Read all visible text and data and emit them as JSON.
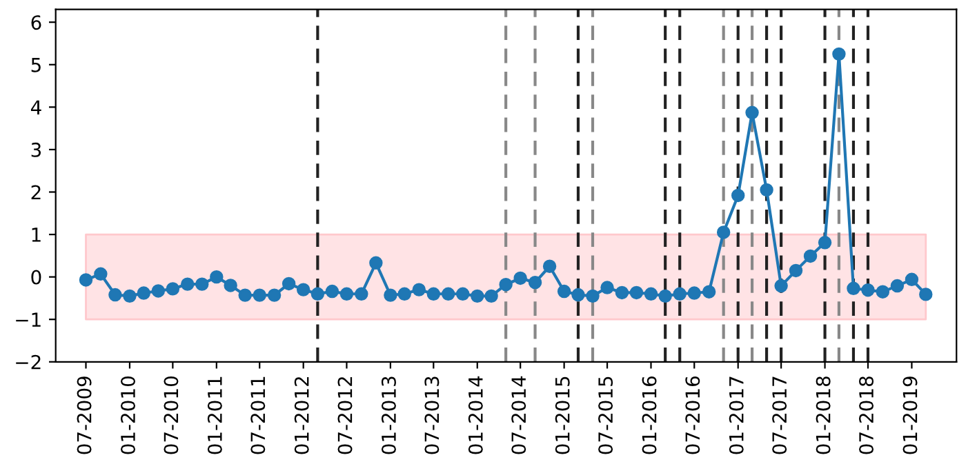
{
  "chart_data": {
    "type": "line",
    "marker": "circle",
    "line_style": "solid",
    "grid": false,
    "legend": false,
    "x": [
      "2009-07",
      "2009-09",
      "2009-11",
      "2010-01",
      "2010-03",
      "2010-05",
      "2010-07",
      "2010-09",
      "2010-11",
      "2011-01",
      "2011-03",
      "2011-05",
      "2011-07",
      "2011-09",
      "2011-11",
      "2012-01",
      "2012-03",
      "2012-05",
      "2012-07",
      "2012-09",
      "2012-11",
      "2013-01",
      "2013-03",
      "2013-05",
      "2013-07",
      "2013-09",
      "2013-11",
      "2014-01",
      "2014-03",
      "2014-05",
      "2014-07",
      "2014-09",
      "2014-11",
      "2015-01",
      "2015-03",
      "2015-05",
      "2015-07",
      "2015-09",
      "2015-11",
      "2016-01",
      "2016-03",
      "2016-05",
      "2016-07",
      "2016-09",
      "2016-11",
      "2017-01",
      "2017-03",
      "2017-05",
      "2017-07",
      "2017-09",
      "2017-11",
      "2018-01",
      "2018-03",
      "2018-05",
      "2018-07",
      "2018-09",
      "2018-11",
      "2019-01",
      "2019-03"
    ],
    "series": [
      {
        "color": "#1f77b4",
        "values": [
          -0.07,
          0.07,
          -0.42,
          -0.45,
          -0.38,
          -0.33,
          -0.28,
          -0.17,
          -0.17,
          0.0,
          -0.2,
          -0.43,
          -0.43,
          -0.43,
          -0.16,
          -0.3,
          -0.4,
          -0.34,
          -0.4,
          -0.4,
          0.33,
          -0.43,
          -0.4,
          -0.3,
          -0.4,
          -0.4,
          -0.4,
          -0.45,
          -0.45,
          -0.18,
          -0.03,
          -0.13,
          0.25,
          -0.34,
          -0.42,
          -0.45,
          -0.25,
          -0.37,
          -0.37,
          -0.4,
          -0.45,
          -0.4,
          -0.38,
          -0.35,
          1.05,
          1.92,
          3.87,
          2.05,
          -0.21,
          0.15,
          0.49,
          0.81,
          5.25,
          -0.27,
          -0.31,
          -0.35,
          -0.21,
          -0.06,
          -0.41
        ]
      }
    ],
    "xlim": [
      "2009-02-24",
      "2019-07-08"
    ],
    "ylim": [
      -2,
      6.3
    ],
    "yticks": [
      -2,
      -1,
      0,
      1,
      2,
      3,
      4,
      5,
      6
    ],
    "xticks": [
      {
        "value": "2009-07",
        "label": "07-2009"
      },
      {
        "value": "2010-01",
        "label": "01-2010"
      },
      {
        "value": "2010-07",
        "label": "07-2010"
      },
      {
        "value": "2011-01",
        "label": "01-2011"
      },
      {
        "value": "2011-07",
        "label": "07-2011"
      },
      {
        "value": "2012-01",
        "label": "01-2012"
      },
      {
        "value": "2012-07",
        "label": "07-2012"
      },
      {
        "value": "2013-01",
        "label": "01-2013"
      },
      {
        "value": "2013-07",
        "label": "07-2013"
      },
      {
        "value": "2014-01",
        "label": "01-2014"
      },
      {
        "value": "2014-07",
        "label": "07-2014"
      },
      {
        "value": "2015-01",
        "label": "01-2015"
      },
      {
        "value": "2015-07",
        "label": "07-2015"
      },
      {
        "value": "2016-01",
        "label": "01-2016"
      },
      {
        "value": "2016-07",
        "label": "07-2016"
      },
      {
        "value": "2017-01",
        "label": "01-2017"
      },
      {
        "value": "2017-07",
        "label": "07-2017"
      },
      {
        "value": "2018-01",
        "label": "01-2018"
      },
      {
        "value": "2018-07",
        "label": "07-2018"
      },
      {
        "value": "2019-01",
        "label": "01-2019"
      }
    ],
    "bands": [
      {
        "axis": "y",
        "from": -1,
        "to": 1,
        "color": "#ffe3e5"
      }
    ],
    "ref_lines": [
      {
        "axis": "x",
        "value": "2012-03",
        "color": "#222222",
        "line_style": "dashed"
      },
      {
        "axis": "x",
        "value": "2014-05",
        "color": "#888888",
        "line_style": "dashed"
      },
      {
        "axis": "x",
        "value": "2014-09",
        "color": "#888888",
        "line_style": "dashed"
      },
      {
        "axis": "x",
        "value": "2015-03",
        "color": "#222222",
        "line_style": "dashed"
      },
      {
        "axis": "x",
        "value": "2015-05",
        "color": "#888888",
        "line_style": "dashed"
      },
      {
        "axis": "x",
        "value": "2016-03",
        "color": "#222222",
        "line_style": "dashed"
      },
      {
        "axis": "x",
        "value": "2016-05",
        "color": "#222222",
        "line_style": "dashed"
      },
      {
        "axis": "x",
        "value": "2016-11",
        "color": "#888888",
        "line_style": "dashed"
      },
      {
        "axis": "x",
        "value": "2017-01",
        "color": "#222222",
        "line_style": "dashed"
      },
      {
        "axis": "x",
        "value": "2017-03",
        "color": "#888888",
        "line_style": "dashed"
      },
      {
        "axis": "x",
        "value": "2017-05",
        "color": "#222222",
        "line_style": "dashed"
      },
      {
        "axis": "x",
        "value": "2017-07",
        "color": "#222222",
        "line_style": "dashed"
      },
      {
        "axis": "x",
        "value": "2018-01",
        "color": "#222222",
        "line_style": "dashed"
      },
      {
        "axis": "x",
        "value": "2018-03",
        "color": "#888888",
        "line_style": "dashed"
      },
      {
        "axis": "x",
        "value": "2018-05",
        "color": "#222222",
        "line_style": "dashed"
      },
      {
        "axis": "x",
        "value": "2018-07",
        "color": "#222222",
        "line_style": "dashed"
      }
    ]
  }
}
